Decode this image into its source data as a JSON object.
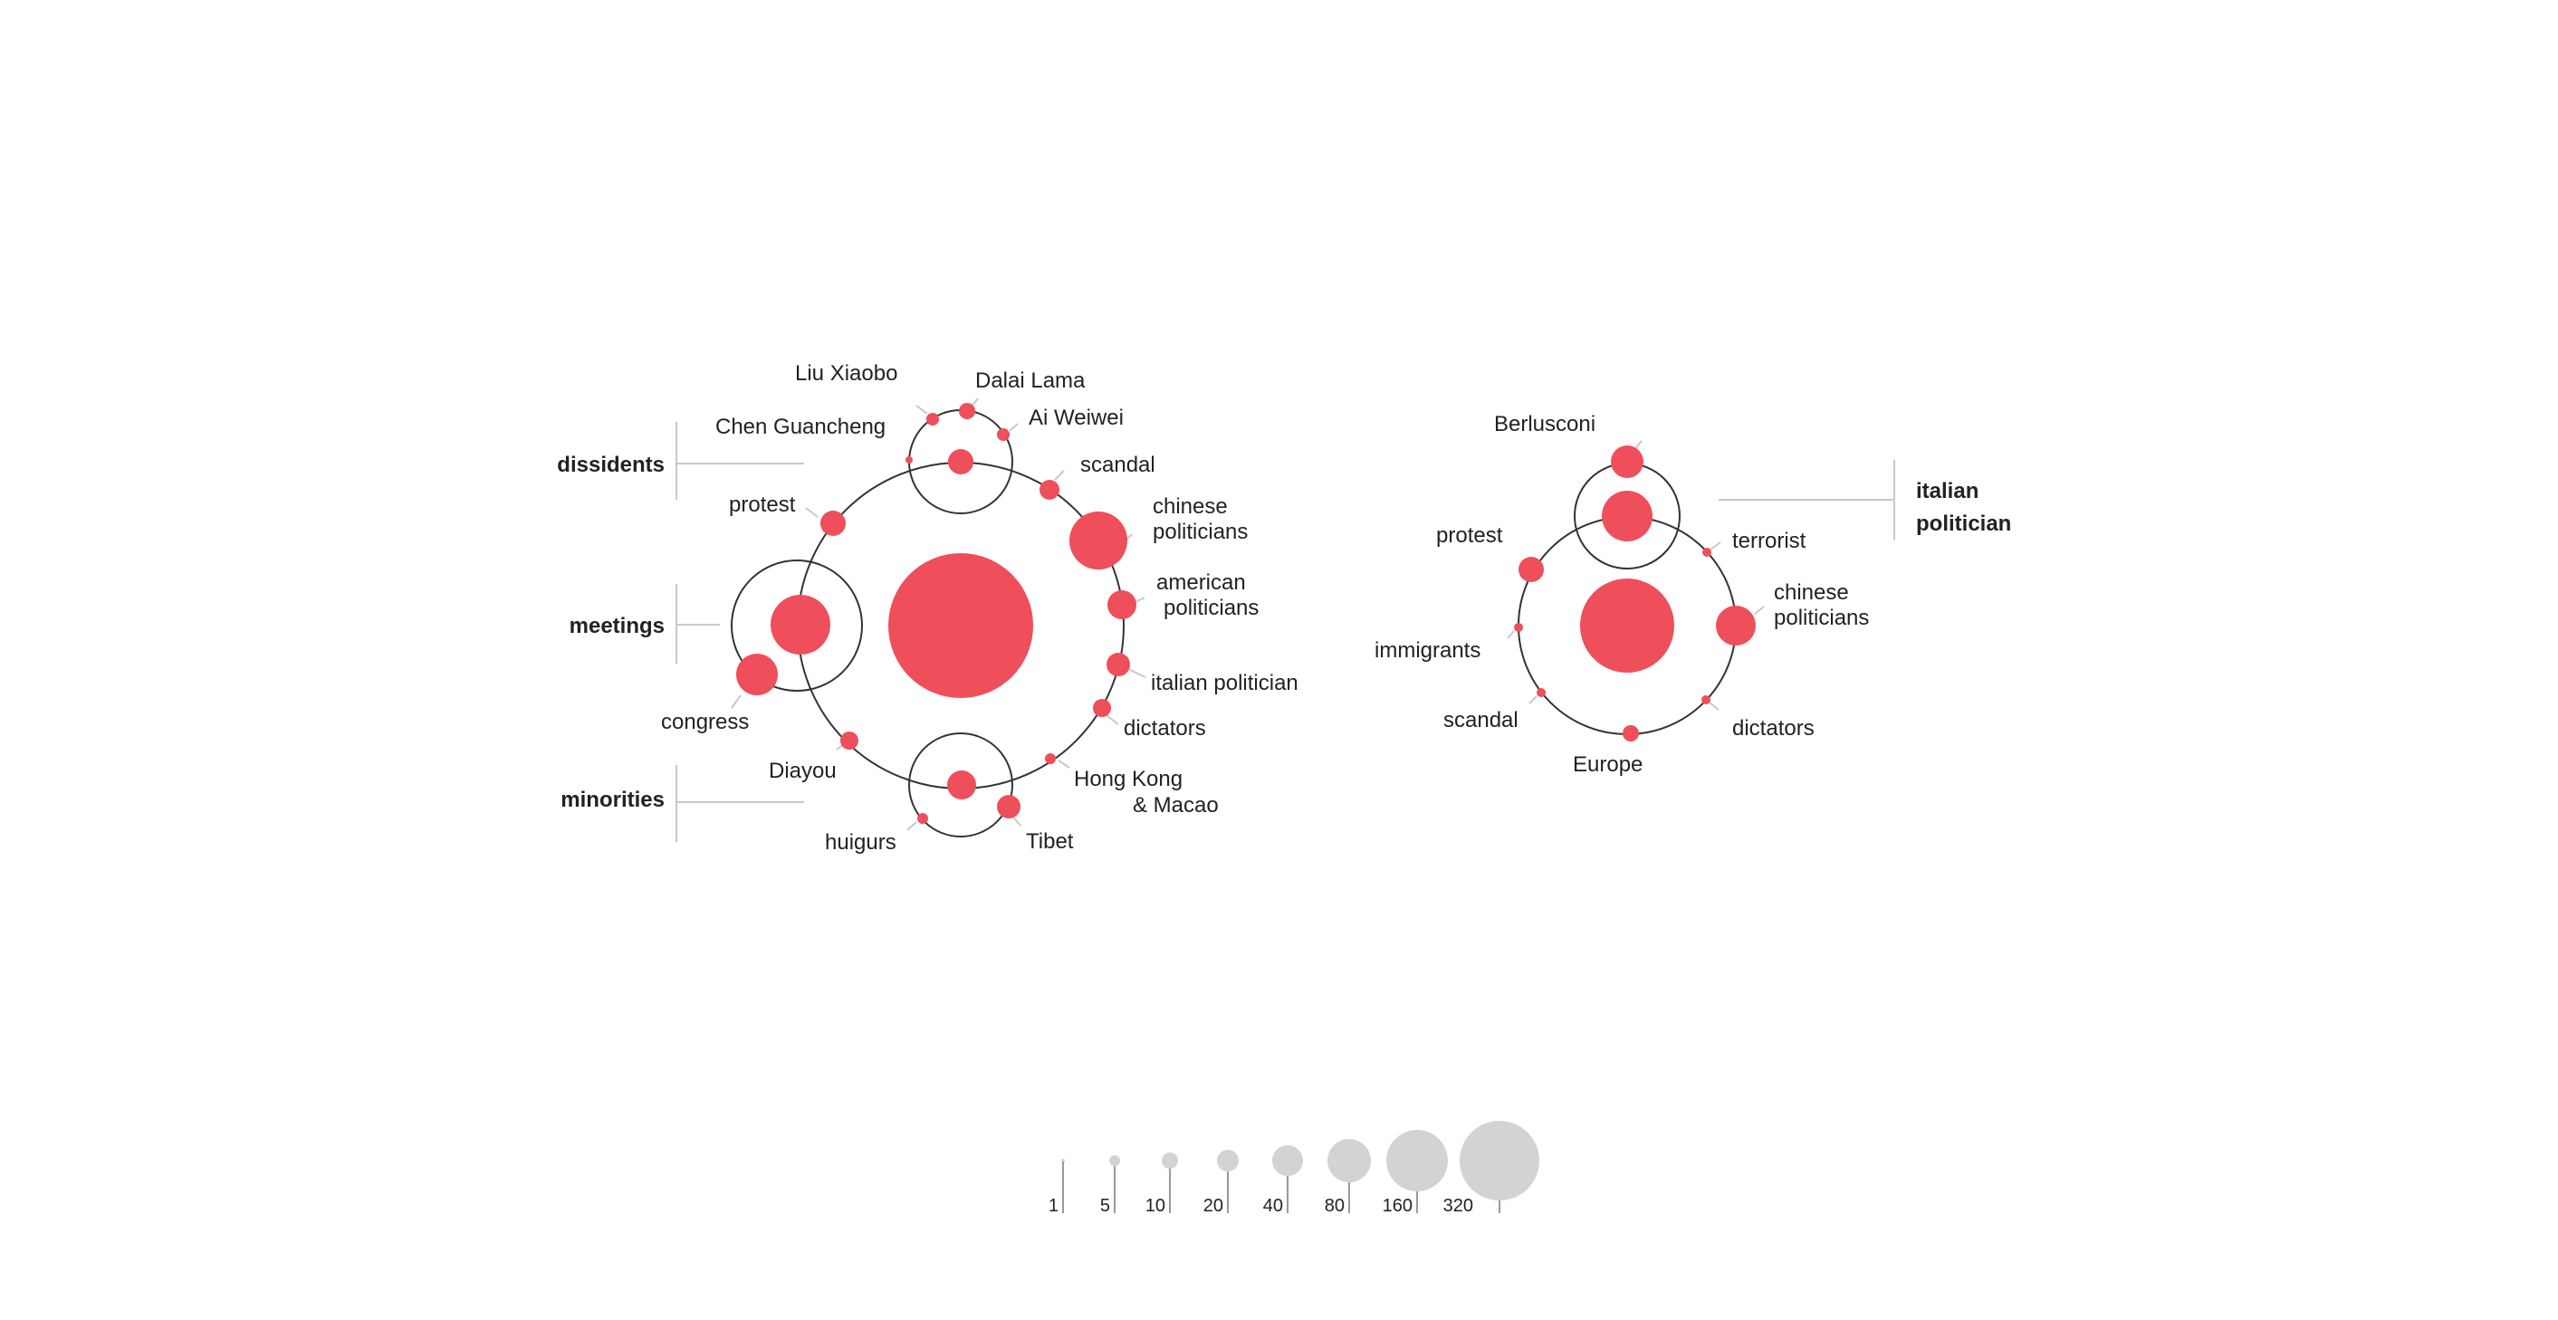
{
  "colors": {
    "bubble": "#ef4e5b",
    "ring": "#333333",
    "leader": "#c8c8c8",
    "scale_bubble": "#d3d3d4"
  },
  "left_cluster": {
    "categories": [
      "dissidents",
      "meetings",
      "minorities"
    ],
    "labels": {
      "liu_xiaobo": "Liu Xiaobo",
      "dalai_lama": "Dalai Lama",
      "ai_weiwei": "Ai Weiwei",
      "chen_guancheng": "Chen Guancheng",
      "scandal": "scandal",
      "chinese_politicians": [
        "chinese",
        "politicians"
      ],
      "protest": "protest",
      "american_politicians": [
        "american",
        "politicians"
      ],
      "italian_politician": "italian politician",
      "congress": "congress",
      "dictators": "dictators",
      "diayou": "Diayou",
      "hong_kong": [
        "Hong Kong",
        "& Macao"
      ],
      "huigurs": "huigurs",
      "tibet": "Tibet"
    }
  },
  "right_cluster": {
    "category": [
      "italian",
      "politician"
    ],
    "labels": {
      "berlusconi": "Berlusconi",
      "protest": "protest",
      "terrorist": "terrorist",
      "chinese_politicians": [
        "chinese",
        "politicians"
      ],
      "immigrants": "immigrants",
      "scandal": "scandal",
      "dictators": "dictators",
      "europe": "Europe"
    }
  },
  "size_scale": {
    "values": [
      "1",
      "5",
      "10",
      "20",
      "40",
      "80",
      "160",
      "320"
    ]
  }
}
